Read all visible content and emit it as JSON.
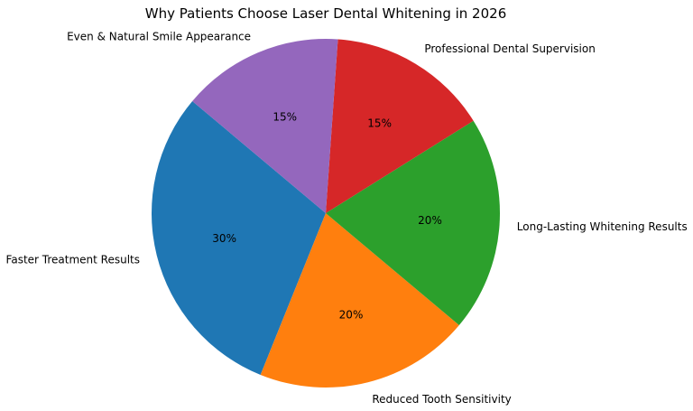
{
  "chart_data": {
    "type": "pie",
    "title": "Why Patients Choose Laser Dental Whitening in 2026",
    "start_angle_deg": 140,
    "direction": "counterclockwise",
    "slices": [
      {
        "label": "Faster Treatment Results",
        "value": 30,
        "pct_label": "30%",
        "color": "#1f77b4"
      },
      {
        "label": "Reduced Tooth Sensitivity",
        "value": 20,
        "pct_label": "20%",
        "color": "#ff7f0e"
      },
      {
        "label": "Long-Lasting Whitening Results",
        "value": 20,
        "pct_label": "20%",
        "color": "#2ca02c"
      },
      {
        "label": "Professional Dental Supervision",
        "value": 15,
        "pct_label": "15%",
        "color": "#d62728"
      },
      {
        "label": "Even & Natural Smile Appearance",
        "value": 15,
        "pct_label": "15%",
        "color": "#9467bd"
      }
    ]
  }
}
